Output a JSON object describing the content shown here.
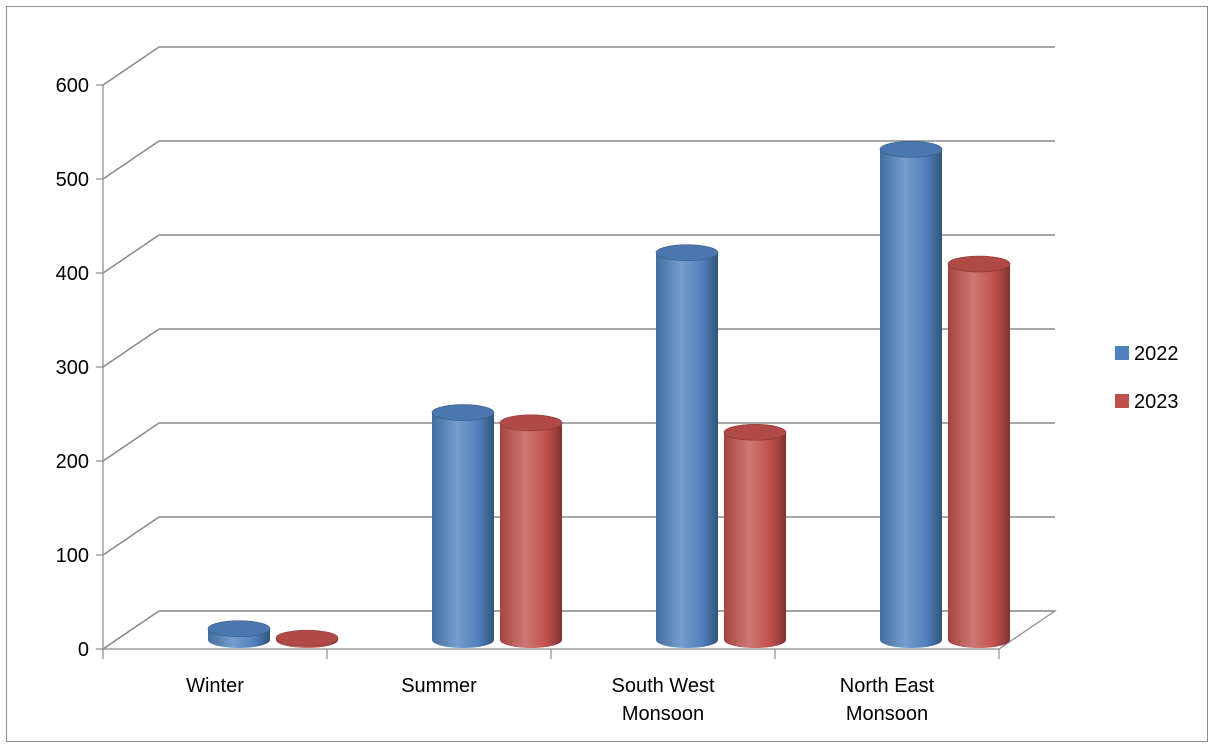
{
  "chart_data": {
    "type": "bar",
    "style": "3d-cylinder",
    "categories": [
      "Winter",
      "Summer",
      "South West Monsoon",
      "North East Monsoon"
    ],
    "category_lines": [
      [
        "Winter"
      ],
      [
        "Summer"
      ],
      [
        "South West",
        "Monsoon"
      ],
      [
        "North East",
        "Monsoon"
      ]
    ],
    "series": [
      {
        "name": "2022",
        "color": "#4f81bd",
        "values": [
          12,
          242,
          412,
          522
        ]
      },
      {
        "name": "2023",
        "color": "#c0504d",
        "values": [
          2,
          231,
          221,
          400
        ]
      }
    ],
    "ylim": [
      0,
      600
    ],
    "yticks": [
      "0",
      "100",
      "200",
      "300",
      "400",
      "500",
      "600"
    ],
    "grid": true,
    "legend_position": "right",
    "title": "",
    "xlabel": "",
    "ylabel": ""
  }
}
